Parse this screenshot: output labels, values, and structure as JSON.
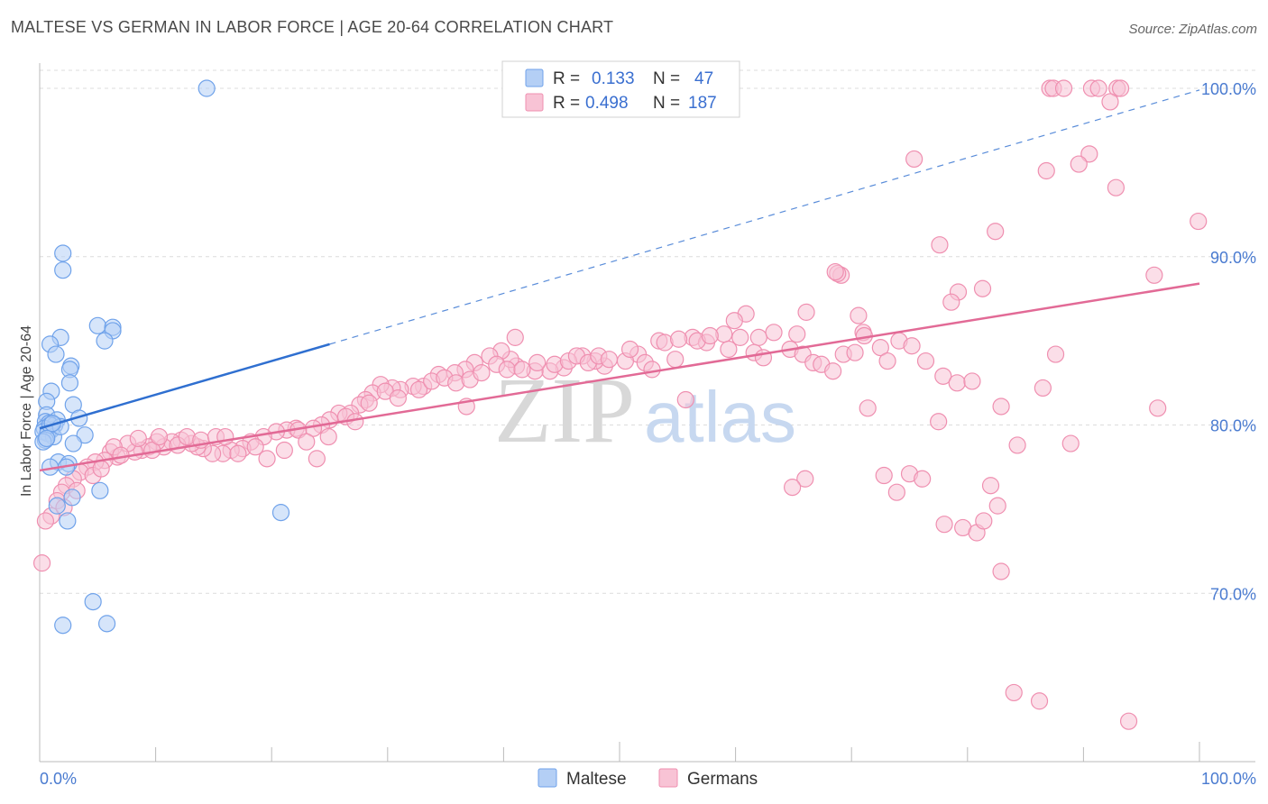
{
  "chart_data": {
    "type": "scatter",
    "title": "MALTESE VS GERMAN IN LABOR FORCE | AGE 20-64 CORRELATION CHART",
    "source": "Source: ZipAtlas.com",
    "xlabel": "",
    "ylabel": "In Labor Force | Age 20-64",
    "xlim": [
      0,
      100
    ],
    "ylim": [
      60,
      101.5
    ],
    "x_tick_labels": [
      "0.0%",
      "100.0%"
    ],
    "y_ticks": [
      70,
      80,
      90,
      100
    ],
    "y_tick_labels": [
      "70.0%",
      "80.0%",
      "90.0%",
      "100.0%"
    ],
    "grid": true,
    "legend_position": "top-center",
    "watermark": {
      "part1": "ZIP",
      "part2": "atlas"
    },
    "legend": {
      "r_label": "R =",
      "n_label": "N =",
      "entries": [
        {
          "r": "0.133",
          "n": "47"
        },
        {
          "r": "0.498",
          "n": "187"
        }
      ]
    },
    "series": [
      {
        "name": "Maltese",
        "color": "#6fa2ea",
        "fill": "#b4cff5",
        "line_color": "#2f6fd0",
        "trend": {
          "x0": 0,
          "y0": 79.8,
          "x1": 25,
          "y1": 84.8,
          "x_ext": 100,
          "y_ext": 99.9
        },
        "points": [
          [
            14.4,
            100.0
          ],
          [
            2.0,
            90.2
          ],
          [
            2.0,
            89.2
          ],
          [
            5.0,
            85.9
          ],
          [
            6.3,
            85.8
          ],
          [
            6.3,
            85.6
          ],
          [
            1.8,
            85.2
          ],
          [
            5.6,
            85.0
          ],
          [
            0.9,
            84.8
          ],
          [
            1.4,
            84.2
          ],
          [
            2.7,
            83.5
          ],
          [
            2.6,
            83.3
          ],
          [
            2.6,
            82.5
          ],
          [
            1.0,
            82.0
          ],
          [
            0.6,
            81.4
          ],
          [
            2.9,
            81.2
          ],
          [
            0.6,
            80.6
          ],
          [
            3.4,
            80.4
          ],
          [
            1.5,
            80.3
          ],
          [
            0.5,
            80.2
          ],
          [
            0.8,
            80.1
          ],
          [
            1.3,
            80.0
          ],
          [
            0.4,
            79.8
          ],
          [
            1.0,
            79.7
          ],
          [
            0.3,
            79.6
          ],
          [
            0.7,
            79.5
          ],
          [
            3.9,
            79.4
          ],
          [
            1.2,
            79.3
          ],
          [
            0.5,
            79.1
          ],
          [
            0.3,
            79.0
          ],
          [
            2.9,
            78.9
          ],
          [
            1.6,
            77.8
          ],
          [
            2.5,
            77.7
          ],
          [
            2.3,
            77.5
          ],
          [
            0.9,
            77.5
          ],
          [
            5.2,
            76.1
          ],
          [
            2.8,
            75.7
          ],
          [
            1.5,
            75.2
          ],
          [
            2.4,
            74.3
          ],
          [
            20.8,
            74.8
          ],
          [
            4.6,
            69.5
          ],
          [
            2.0,
            68.1
          ],
          [
            5.8,
            68.2
          ],
          [
            0.9,
            80.0
          ],
          [
            1.8,
            79.9
          ],
          [
            0.6,
            79.2
          ],
          [
            1.1,
            80.1
          ]
        ]
      },
      {
        "name": "Germans",
        "color": "#ef8fb0",
        "fill": "#f8c3d5",
        "line_color": "#e26a96",
        "trend": {
          "x0": 0,
          "y0": 77.3,
          "x1": 100,
          "y1": 88.4
        },
        "points": [
          [
            87.1,
            100.0
          ],
          [
            87.4,
            100.0
          ],
          [
            88.3,
            100.0
          ],
          [
            90.7,
            100.0
          ],
          [
            91.3,
            100.0
          ],
          [
            92.9,
            100.0
          ],
          [
            93.2,
            100.0
          ],
          [
            92.3,
            99.2
          ],
          [
            90.5,
            96.1
          ],
          [
            75.4,
            95.8
          ],
          [
            89.6,
            95.5
          ],
          [
            86.8,
            95.1
          ],
          [
            92.8,
            94.1
          ],
          [
            99.9,
            92.1
          ],
          [
            82.4,
            91.5
          ],
          [
            77.6,
            90.7
          ],
          [
            96.1,
            88.9
          ],
          [
            69.1,
            88.9
          ],
          [
            68.8,
            89.0
          ],
          [
            68.6,
            89.1
          ],
          [
            81.3,
            88.1
          ],
          [
            79.2,
            87.9
          ],
          [
            78.6,
            87.3
          ],
          [
            70.6,
            86.5
          ],
          [
            66.1,
            86.7
          ],
          [
            60.9,
            86.6
          ],
          [
            59.9,
            86.2
          ],
          [
            71.0,
            85.5
          ],
          [
            65.3,
            85.4
          ],
          [
            62.0,
            85.2
          ],
          [
            59.0,
            85.4
          ],
          [
            56.3,
            85.2
          ],
          [
            57.5,
            84.9
          ],
          [
            53.4,
            85.0
          ],
          [
            51.6,
            84.2
          ],
          [
            54.8,
            83.9
          ],
          [
            52.2,
            83.7
          ],
          [
            50.5,
            83.8
          ],
          [
            48.7,
            83.5
          ],
          [
            47.9,
            83.8
          ],
          [
            46.8,
            84.1
          ],
          [
            45.2,
            83.4
          ],
          [
            44.0,
            83.2
          ],
          [
            42.7,
            83.2
          ],
          [
            41.1,
            83.5
          ],
          [
            40.6,
            83.9
          ],
          [
            39.8,
            84.4
          ],
          [
            38.8,
            84.1
          ],
          [
            37.5,
            83.7
          ],
          [
            36.7,
            83.3
          ],
          [
            35.8,
            83.1
          ],
          [
            34.4,
            83.0
          ],
          [
            33.1,
            82.3
          ],
          [
            32.2,
            82.3
          ],
          [
            31.1,
            82.1
          ],
          [
            30.4,
            82.2
          ],
          [
            29.4,
            82.4
          ],
          [
            28.7,
            81.9
          ],
          [
            28.1,
            81.5
          ],
          [
            27.6,
            81.2
          ],
          [
            26.8,
            80.7
          ],
          [
            25.8,
            80.7
          ],
          [
            25.0,
            80.3
          ],
          [
            24.3,
            80.0
          ],
          [
            23.6,
            79.8
          ],
          [
            22.1,
            79.8
          ],
          [
            21.3,
            79.7
          ],
          [
            20.4,
            79.6
          ],
          [
            19.3,
            79.3
          ],
          [
            18.2,
            79.0
          ],
          [
            17.5,
            78.6
          ],
          [
            16.5,
            78.5
          ],
          [
            15.8,
            78.3
          ],
          [
            14.9,
            78.3
          ],
          [
            14.1,
            78.6
          ],
          [
            13.6,
            78.7
          ],
          [
            13.1,
            78.9
          ],
          [
            12.2,
            79.1
          ],
          [
            11.4,
            79.0
          ],
          [
            10.7,
            78.7
          ],
          [
            10.1,
            79.0
          ],
          [
            9.4,
            78.7
          ],
          [
            8.8,
            78.5
          ],
          [
            8.2,
            78.4
          ],
          [
            7.6,
            78.9
          ],
          [
            6.7,
            78.1
          ],
          [
            6.1,
            78.4
          ],
          [
            5.6,
            77.9
          ],
          [
            4.8,
            77.8
          ],
          [
            4.1,
            77.5
          ],
          [
            3.5,
            77.2
          ],
          [
            2.9,
            76.8
          ],
          [
            2.3,
            76.4
          ],
          [
            1.9,
            76.0
          ],
          [
            1.5,
            75.5
          ],
          [
            1.0,
            74.6
          ],
          [
            0.5,
            74.3
          ],
          [
            0.2,
            71.8
          ],
          [
            2.1,
            75.1
          ],
          [
            3.2,
            76.1
          ],
          [
            4.6,
            77.0
          ],
          [
            5.3,
            77.4
          ],
          [
            6.4,
            78.7
          ],
          [
            7.0,
            78.2
          ],
          [
            8.5,
            79.2
          ],
          [
            9.7,
            78.5
          ],
          [
            10.3,
            79.3
          ],
          [
            11.9,
            78.8
          ],
          [
            12.7,
            79.3
          ],
          [
            13.9,
            79.1
          ],
          [
            15.2,
            79.3
          ],
          [
            16.0,
            79.3
          ],
          [
            17.1,
            78.3
          ],
          [
            18.6,
            78.7
          ],
          [
            19.6,
            78.0
          ],
          [
            21.1,
            78.5
          ],
          [
            22.3,
            79.7
          ],
          [
            23.0,
            79.0
          ],
          [
            23.9,
            78.0
          ],
          [
            24.9,
            79.3
          ],
          [
            26.4,
            80.5
          ],
          [
            27.2,
            80.2
          ],
          [
            28.4,
            81.3
          ],
          [
            29.8,
            82.0
          ],
          [
            30.9,
            81.6
          ],
          [
            32.7,
            82.1
          ],
          [
            33.8,
            82.6
          ],
          [
            34.9,
            82.8
          ],
          [
            35.9,
            82.5
          ],
          [
            37.1,
            82.7
          ],
          [
            38.1,
            83.1
          ],
          [
            39.4,
            83.6
          ],
          [
            40.3,
            83.3
          ],
          [
            41.6,
            83.3
          ],
          [
            42.9,
            83.7
          ],
          [
            44.4,
            83.6
          ],
          [
            45.6,
            83.8
          ],
          [
            46.3,
            84.1
          ],
          [
            47.3,
            83.7
          ],
          [
            48.2,
            84.1
          ],
          [
            49.1,
            83.9
          ],
          [
            50.9,
            84.5
          ],
          [
            52.8,
            83.3
          ],
          [
            53.9,
            84.9
          ],
          [
            55.1,
            85.1
          ],
          [
            56.7,
            85.0
          ],
          [
            57.8,
            85.3
          ],
          [
            59.4,
            84.5
          ],
          [
            60.4,
            85.2
          ],
          [
            61.6,
            84.3
          ],
          [
            62.4,
            84.0
          ],
          [
            63.3,
            85.5
          ],
          [
            64.7,
            84.5
          ],
          [
            65.8,
            84.2
          ],
          [
            66.7,
            83.7
          ],
          [
            67.4,
            83.6
          ],
          [
            68.4,
            83.2
          ],
          [
            69.3,
            84.2
          ],
          [
            70.3,
            84.3
          ],
          [
            71.1,
            85.3
          ],
          [
            72.5,
            84.6
          ],
          [
            73.1,
            83.8
          ],
          [
            74.1,
            85.0
          ],
          [
            75.2,
            84.7
          ],
          [
            76.4,
            83.8
          ],
          [
            77.9,
            82.9
          ],
          [
            79.1,
            82.5
          ],
          [
            80.4,
            82.6
          ],
          [
            82.9,
            81.1
          ],
          [
            84.3,
            78.8
          ],
          [
            86.5,
            82.2
          ],
          [
            87.6,
            84.2
          ],
          [
            88.9,
            78.9
          ],
          [
            96.4,
            81.0
          ],
          [
            66.0,
            76.8
          ],
          [
            71.4,
            81.0
          ],
          [
            72.8,
            77.0
          ],
          [
            73.9,
            76.0
          ],
          [
            75.0,
            77.1
          ],
          [
            76.1,
            76.8
          ],
          [
            77.5,
            80.2
          ],
          [
            78.0,
            74.1
          ],
          [
            79.6,
            73.9
          ],
          [
            80.8,
            73.6
          ],
          [
            81.4,
            74.3
          ],
          [
            82.0,
            76.4
          ],
          [
            82.6,
            75.2
          ],
          [
            82.9,
            71.3
          ],
          [
            84.0,
            64.1
          ],
          [
            86.2,
            63.6
          ],
          [
            93.9,
            62.4
          ],
          [
            55.7,
            81.5
          ],
          [
            41.0,
            85.2
          ],
          [
            36.8,
            81.1
          ],
          [
            64.9,
            76.3
          ]
        ]
      }
    ]
  }
}
